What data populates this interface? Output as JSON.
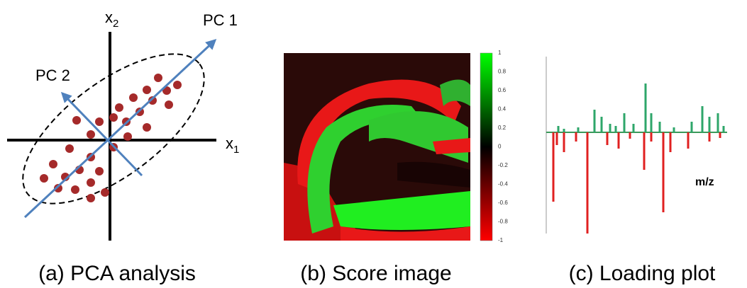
{
  "panel_a": {
    "axis_y_label": {
      "base": "x",
      "sub": "2"
    },
    "axis_x_label": {
      "base": "x",
      "sub": "1"
    },
    "pc1_label": "PC 1",
    "pc2_label": "PC 2",
    "caption": "(a) PCA analysis"
  },
  "panel_b": {
    "colorbar_ticks": [
      "1",
      "0.8",
      "0.6",
      "0.4",
      "0.2",
      "0",
      "-0.2",
      "-0.4",
      "-0.6",
      "-0.8",
      "-1"
    ],
    "caption": "(b) Score image"
  },
  "panel_c": {
    "x_label": "m/z",
    "caption": "(c) Loading plot"
  }
}
